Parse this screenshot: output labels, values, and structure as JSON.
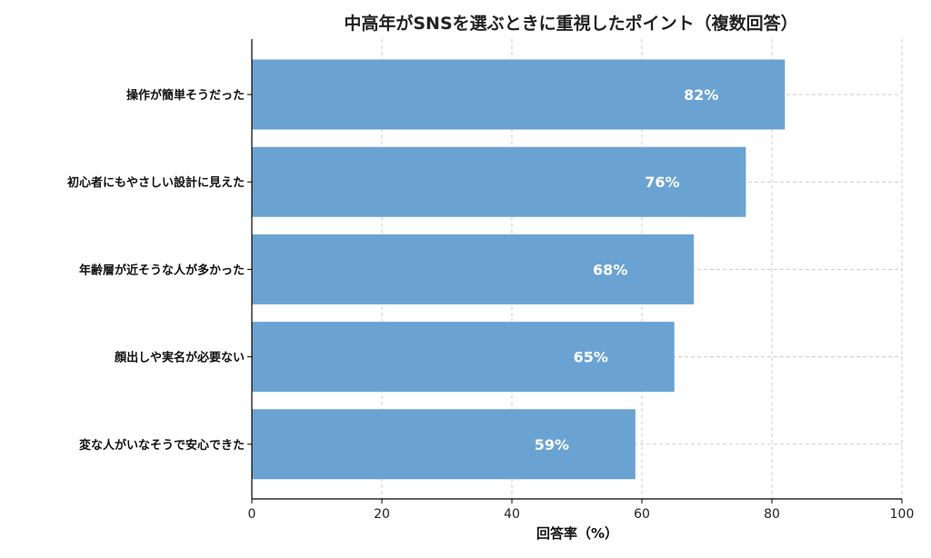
{
  "chart_data": {
    "type": "bar",
    "orientation": "horizontal",
    "title": "中高年がSNSを選ぶときに重視したポイント（複数回答）",
    "xlabel": "回答率（%）",
    "ylabel": "",
    "categories": [
      "操作が簡単そうだった",
      "初心者にもやさしい設計に見えた",
      "年齢層が近そうな人が多かった",
      "顔出しや実名が必要ない",
      "変な人がいなそうで安心できた"
    ],
    "values": [
      82,
      76,
      68,
      65,
      59
    ],
    "data_labels": [
      "82%",
      "76%",
      "68%",
      "65%",
      "59%"
    ],
    "xlim": [
      0,
      100
    ],
    "xticks": [
      "0",
      "20",
      "40",
      "60",
      "80",
      "100"
    ],
    "grid": true,
    "bar_color": "#6aa3d2"
  }
}
